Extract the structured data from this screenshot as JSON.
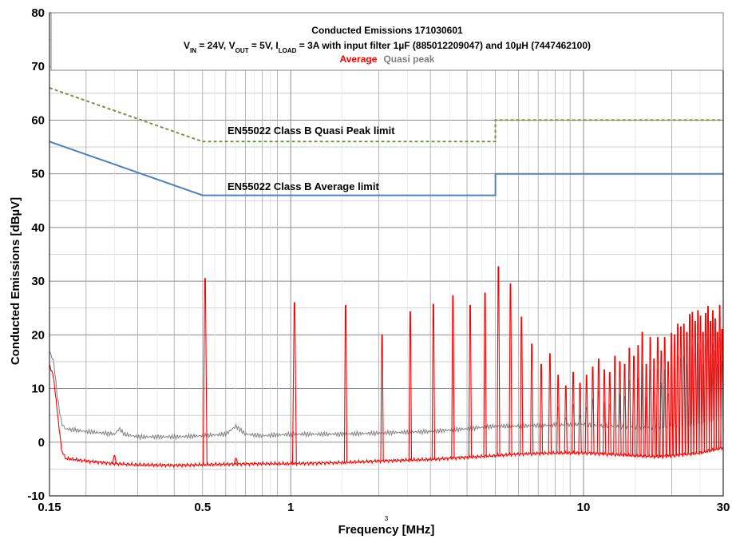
{
  "chart_data": {
    "type": "line",
    "title": "Conducted Emissions 171030601",
    "subtitle_parts": {
      "p1": "V",
      "s1": "IN",
      "p2": " = 24V, V",
      "s2": "OUT",
      "p3": " = 5V, I",
      "s3": "LOAD",
      "p4": " = 3A with input filter 1µF (885012209047) and 10µH (7447462100)"
    },
    "legend": [
      {
        "name": "Average",
        "color": "#ff0000"
      },
      {
        "name": "Quasi peak",
        "color": "#808080"
      }
    ],
    "xlabel": "Frequency [MHz]",
    "ylabel": "Conducted Emissions [dBµV]",
    "x_scale": "log",
    "xlim": [
      0.15,
      30
    ],
    "ylim": [
      -10,
      80
    ],
    "x_tick_labels": [
      "0.15",
      "0.5",
      "1",
      "10",
      "30"
    ],
    "x_tick_values": [
      0.15,
      0.5,
      1,
      10,
      30
    ],
    "x_minor_note": "3",
    "y_ticks": [
      -10,
      0,
      10,
      20,
      30,
      40,
      50,
      60,
      70,
      80
    ],
    "grid": true,
    "limit_labels": {
      "quasi_peak": "EN55022 Class B Quasi Peak limit",
      "average": "EN55022 Class B Average limit"
    },
    "series": [
      {
        "name": "EN55022 Class B Quasi Peak limit",
        "style": "dashed",
        "color": "#77933c",
        "x": [
          0.15,
          0.5,
          5,
          5,
          30
        ],
        "y": [
          66,
          56,
          56,
          60,
          60
        ]
      },
      {
        "name": "EN55022 Class B Average limit",
        "style": "solid",
        "color": "#4f81bd",
        "x": [
          0.15,
          0.5,
          5,
          5,
          30
        ],
        "y": [
          56,
          46,
          46,
          50,
          50
        ]
      },
      {
        "name": "Quasi peak",
        "color": "#808080",
        "x": [
          0.15,
          0.155,
          0.16,
          0.165,
          0.17,
          0.2,
          0.25,
          0.26,
          0.27,
          0.3,
          0.4,
          0.5,
          0.6,
          0.65,
          0.7,
          0.8,
          1,
          1.5,
          2,
          3,
          4,
          5,
          6,
          8,
          10,
          12,
          15,
          18,
          20,
          25,
          30
        ],
        "y": [
          17,
          15,
          8,
          3.5,
          2.5,
          2,
          1.5,
          2.5,
          1.5,
          1,
          1,
          1.2,
          1.5,
          3,
          1.5,
          1.2,
          1.5,
          1.5,
          1.7,
          2,
          2.5,
          3,
          3,
          3.2,
          3.3,
          3,
          2.8,
          2.7,
          3,
          3.5,
          4.5
        ]
      },
      {
        "name": "Average",
        "color": "#ff0000",
        "baseline": {
          "x": [
            0.15,
            0.155,
            0.16,
            0.165,
            0.17,
            0.2,
            0.25,
            0.3,
            0.4,
            0.5,
            0.6,
            0.8,
            1,
            1.5,
            2,
            3,
            4,
            5,
            6,
            8,
            10,
            12,
            15,
            18,
            20,
            25,
            30
          ],
          "y": [
            14.5,
            12,
            5,
            -1.5,
            -3,
            -3.5,
            -4,
            -4.2,
            -4.3,
            -4.2,
            -4.1,
            -4,
            -4,
            -3.8,
            -3.5,
            -3.2,
            -2.8,
            -2.5,
            -2.2,
            -2,
            -2,
            -2.2,
            -2.5,
            -2.7,
            -2.5,
            -2,
            -1
          ]
        },
        "peaks": {
          "x": [
            0.25,
            0.51,
            0.65,
            1.03,
            1.54,
            2.05,
            2.56,
            3.07,
            3.58,
            4.1,
            4.61,
            5.12,
            5.63,
            6.14,
            6.66,
            7.17,
            7.68,
            8.19,
            8.7,
            9.22,
            9.73,
            10.24,
            10.75,
            11.26,
            11.78,
            12.29,
            12.8,
            13.31,
            13.82,
            14.34,
            14.85,
            15.36,
            15.87,
            16.38,
            16.9,
            17.41,
            17.92,
            18.43,
            18.94,
            19.46,
            19.97,
            20.48,
            20.99,
            21.5,
            22.02,
            22.53,
            23.04,
            23.55,
            24.06,
            24.58,
            25.09,
            25.6,
            26.11,
            26.62,
            27.14,
            27.65,
            28.16,
            28.67,
            29.18,
            29.7
          ],
          "y": [
            -2.5,
            30.5,
            -3,
            26,
            25.5,
            20,
            24.3,
            25.7,
            27.3,
            25.5,
            27.8,
            32.7,
            29.5,
            23.3,
            18.3,
            14.5,
            16.5,
            12.5,
            10.5,
            13,
            11,
            12.5,
            14,
            15.5,
            13.5,
            13,
            16,
            15,
            14.5,
            17.5,
            16,
            18,
            20.5,
            14.5,
            19.5,
            15.5,
            19.5,
            17,
            19.5,
            15,
            20.3,
            20,
            22,
            21.5,
            22,
            20.5,
            23.8,
            24.2,
            22.5,
            24.5,
            23.5,
            20.5,
            24,
            25.3,
            22.5,
            24.5,
            23,
            20.5,
            25.5,
            21
          ]
        }
      }
    ]
  }
}
